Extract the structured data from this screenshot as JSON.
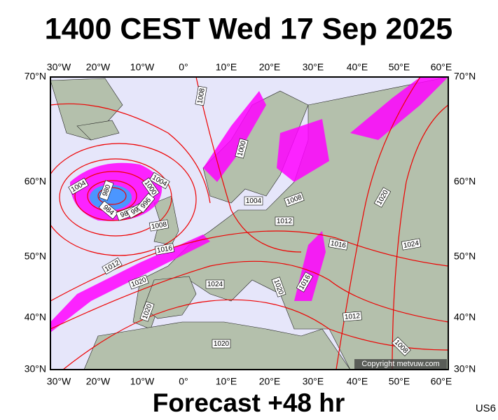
{
  "title": "1400 CEST Wed 17 Sep 2025",
  "footer": "Forecast +48 hr",
  "model": "US6",
  "copyright": "Copyright metvuw.com",
  "lon_labels": [
    "30°W",
    "20°W",
    "10°W",
    "0°",
    "10°E",
    "20°E",
    "30°E",
    "40°E",
    "50°E",
    "60°E"
  ],
  "lat_labels": [
    "70°N",
    "60°N",
    "50°N",
    "40°N",
    "30°N"
  ],
  "isobar_labels": [
    "1008",
    "1000",
    "1004",
    "1004",
    "1000",
    "980",
    "984",
    "988",
    "992",
    "996",
    "1008",
    "1004",
    "1008",
    "1012",
    "1016",
    "1012",
    "1020",
    "1020",
    "1024",
    "1020",
    "1016",
    "1016",
    "1024",
    "1020",
    "1012",
    "1020",
    "1008"
  ]
}
